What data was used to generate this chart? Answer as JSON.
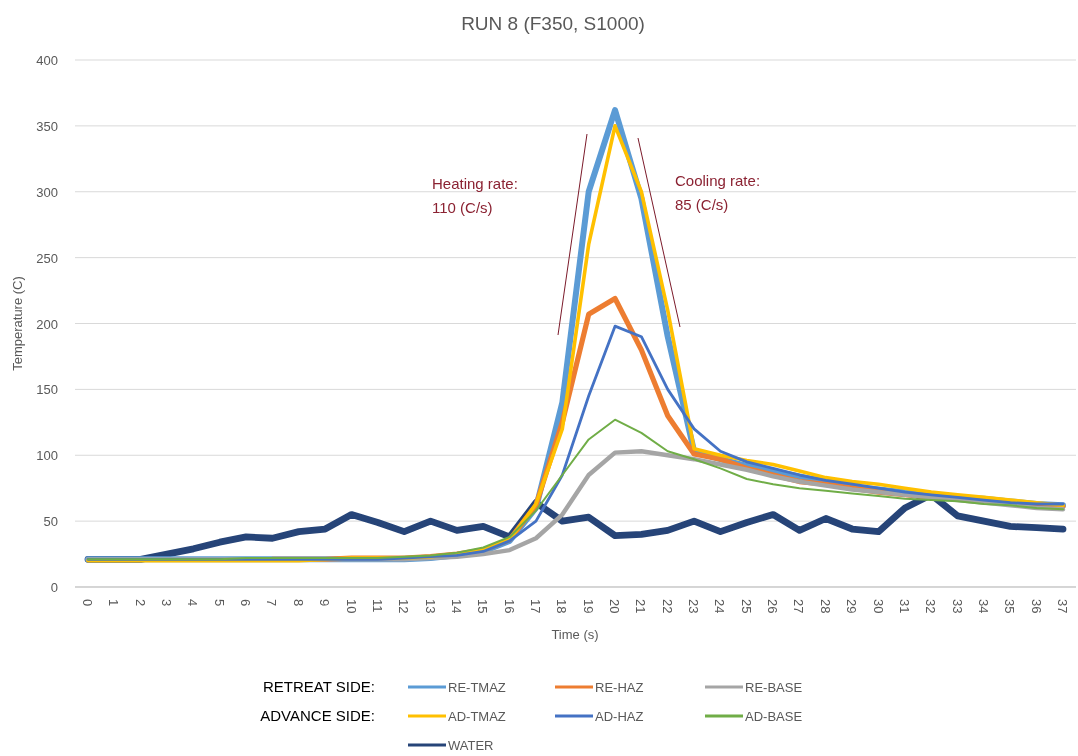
{
  "chart_data": {
    "type": "line",
    "title": "RUN 8 (F350, S1000)",
    "xlabel": "Time (s)",
    "ylabel": "Temperature (C)",
    "categories": [
      "0",
      "1",
      "2",
      "3",
      "4",
      "5",
      "6",
      "7",
      "8",
      "9",
      "10",
      "11",
      "12",
      "13",
      "14",
      "15",
      "16",
      "17",
      "18",
      "19",
      "20",
      "21",
      "22",
      "23",
      "24",
      "25",
      "26",
      "27",
      "28",
      "29",
      "30",
      "31",
      "32",
      "33",
      "34",
      "35",
      "36",
      "37"
    ],
    "series": [
      {
        "name": "RE-TMAZ",
        "color": "#5b9bd5",
        "values": [
          21,
          21,
          21,
          21,
          21,
          21,
          21,
          21,
          21,
          21,
          21,
          21,
          21,
          22,
          24,
          27,
          35,
          60,
          140,
          300,
          362,
          295,
          190,
          103,
          97,
          92,
          88,
          84,
          80,
          76,
          74,
          72,
          70,
          68,
          67,
          65,
          63,
          62
        ]
      },
      {
        "name": "RE-HAZ",
        "color": "#ed7d31",
        "values": [
          null,
          null,
          null,
          null,
          null,
          null,
          null,
          21,
          21,
          21,
          22,
          22,
          22,
          23,
          25,
          28,
          36,
          62,
          125,
          207,
          219,
          180,
          130,
          101,
          97,
          90,
          85,
          80,
          78,
          75,
          72,
          70,
          68,
          67,
          65,
          63,
          62,
          61
        ]
      },
      {
        "name": "RE-BASE",
        "color": "#a5a5a5",
        "values": [
          21,
          21,
          21,
          21,
          21,
          21,
          21,
          21,
          21,
          21,
          21,
          21,
          21,
          22,
          23,
          25,
          28,
          37,
          55,
          85,
          102,
          103,
          100,
          97,
          93,
          89,
          84,
          80,
          77,
          74,
          72,
          70,
          68,
          66,
          64,
          62,
          60,
          59
        ]
      },
      {
        "name": "AD-TMAZ",
        "color": "#ffc000",
        "values": [
          20,
          20,
          20,
          20,
          20,
          20,
          20,
          20,
          20,
          21,
          22,
          22,
          22,
          23,
          25,
          28,
          36,
          63,
          120,
          260,
          350,
          300,
          210,
          105,
          100,
          96,
          93,
          88,
          83,
          80,
          78,
          75,
          72,
          70,
          68,
          66,
          64,
          62
        ]
      },
      {
        "name": "AD-HAZ",
        "color": "#4472c4",
        "values": [
          21,
          21,
          21,
          21,
          21,
          21,
          21,
          21,
          21,
          21,
          21,
          21,
          22,
          23,
          24,
          27,
          35,
          50,
          85,
          145,
          198,
          190,
          150,
          120,
          103,
          95,
          90,
          85,
          81,
          78,
          75,
          72,
          70,
          68,
          66,
          64,
          63,
          63
        ]
      },
      {
        "name": "AD-BASE",
        "color": "#70ad47",
        "values": [
          21,
          21,
          21,
          21,
          21,
          21,
          22,
          22,
          22,
          22,
          22,
          22,
          23,
          24,
          26,
          30,
          38,
          58,
          85,
          112,
          127,
          117,
          103,
          97,
          90,
          82,
          78,
          75,
          73,
          71,
          69,
          67,
          66,
          65,
          63,
          62,
          60,
          59
        ]
      },
      {
        "name": "WATER",
        "color": "#264478",
        "values": [
          21,
          21,
          21,
          25,
          29,
          34,
          38,
          37,
          42,
          44,
          55,
          49,
          42,
          50,
          43,
          46,
          38,
          64,
          50,
          53,
          39,
          40,
          43,
          50,
          42,
          49,
          55,
          43,
          52,
          44,
          42,
          60,
          70,
          54,
          50,
          46,
          45,
          44
        ]
      }
    ],
    "ylim": [
      0,
      400
    ],
    "yticks": [
      0,
      50,
      100,
      150,
      200,
      250,
      300,
      350,
      400
    ],
    "grid": "y",
    "legend": "bottom",
    "marker": "none",
    "line_style": "solid",
    "annotations": [
      "Heating rate:\n110 (C/s)",
      "Cooling rate:\n85 (C/s)",
      "RETREAT SIDE:",
      "ADVANCE SIDE:"
    ]
  }
}
